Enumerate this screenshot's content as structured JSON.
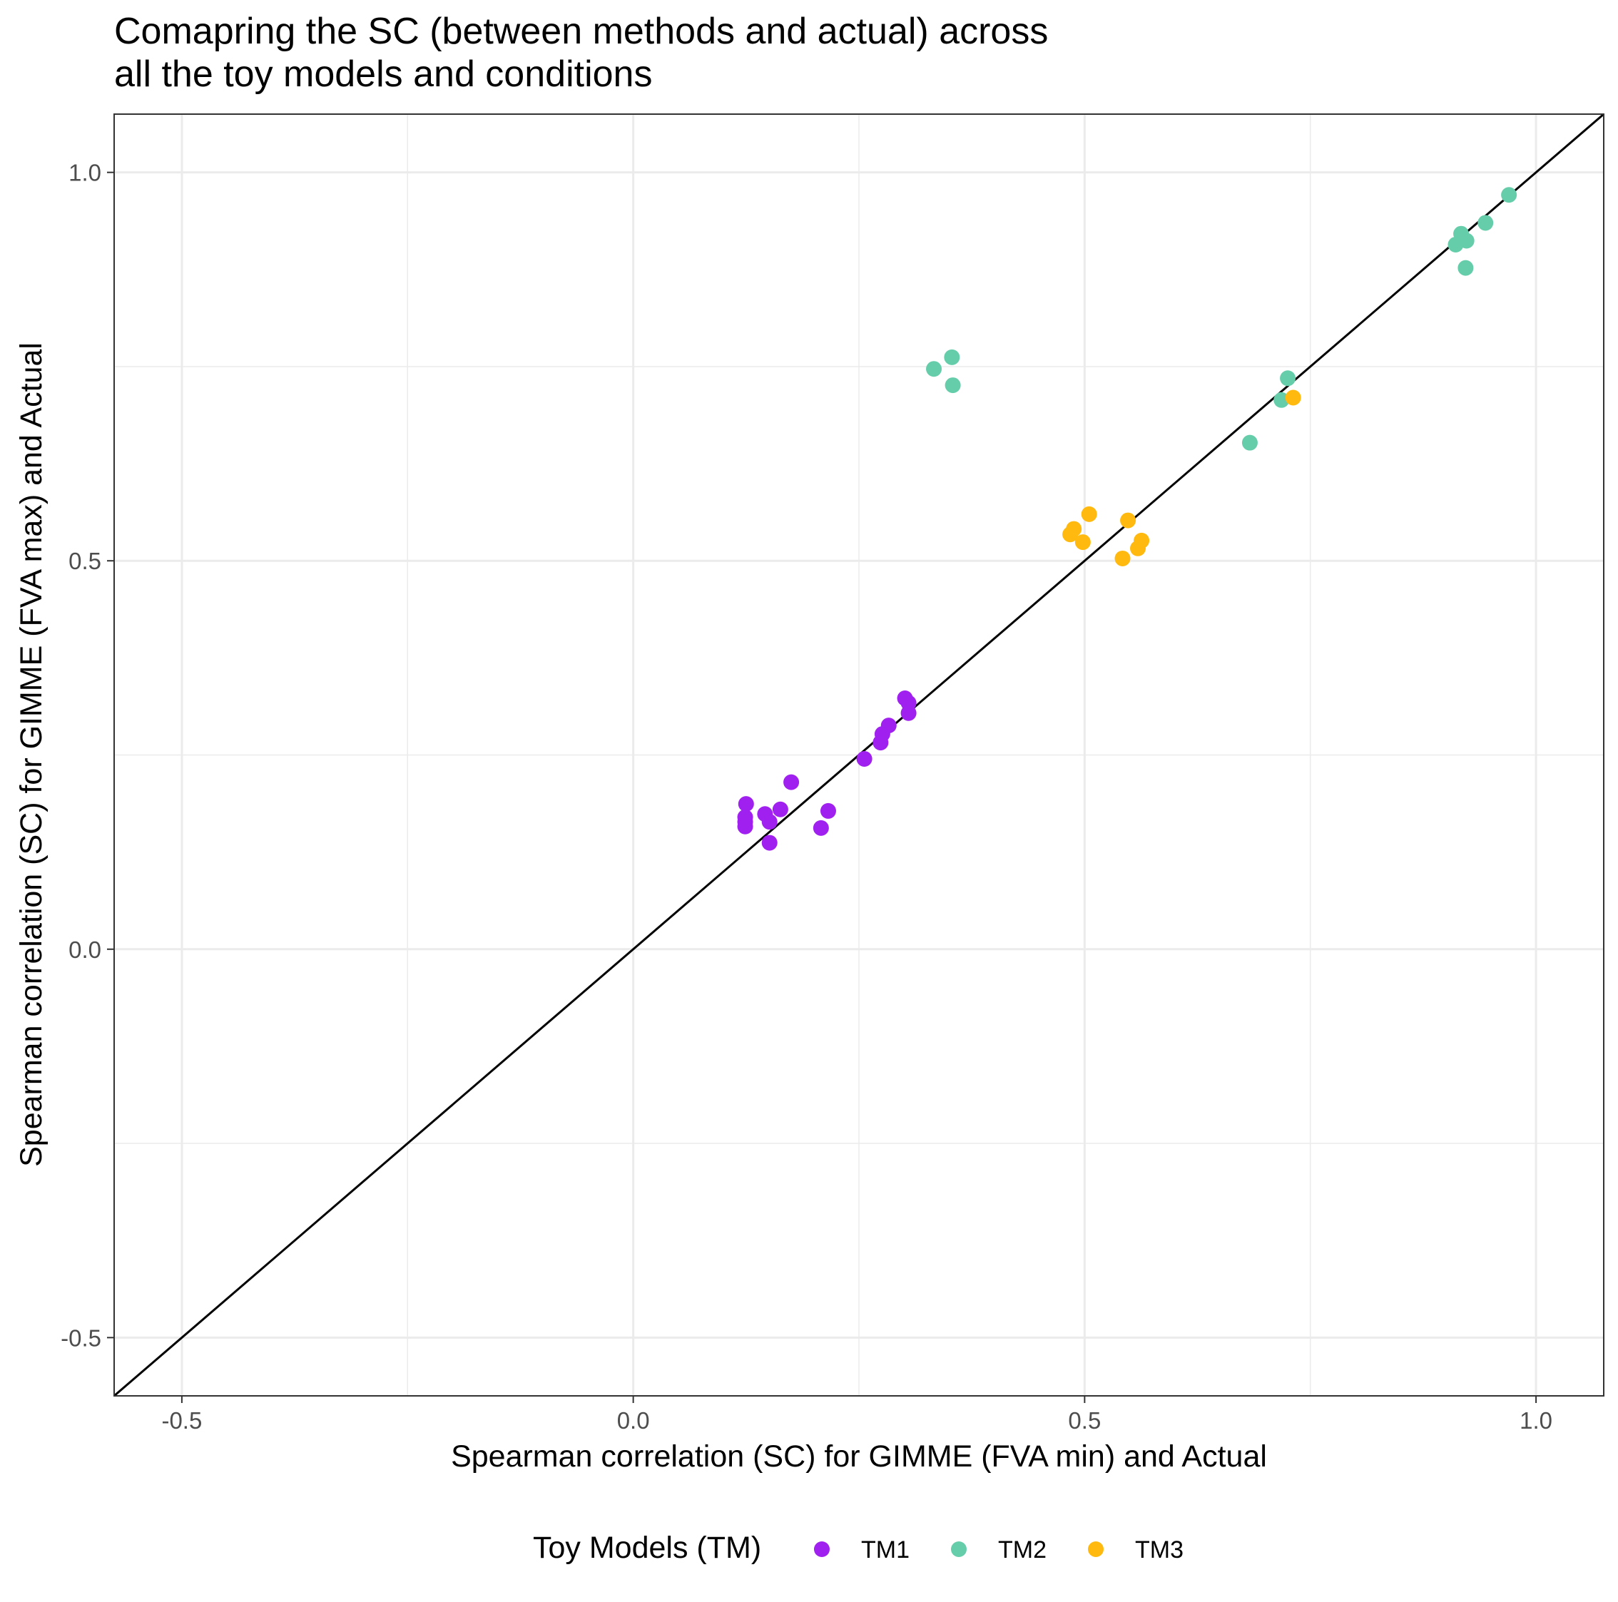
{
  "chart_data": {
    "type": "scatter",
    "title_lines": [
      "Comapring the SC (between methods and actual) across",
      "all the toy models and conditions"
    ],
    "xlabel": "Spearman correlation (SC) for GIMME (FVA min) and Actual",
    "ylabel": "Spearman correlation (SC) for GIMME (FVA max) and Actual",
    "xlim": [
      -0.575,
      1.075
    ],
    "ylim": [
      -0.575,
      1.075
    ],
    "x_ticks": [
      -0.5,
      0.0,
      0.5,
      1.0
    ],
    "x_tick_labels": [
      "-0.5",
      "0.0",
      "0.5",
      "1.0"
    ],
    "y_ticks": [
      -0.5,
      0.0,
      0.5,
      1.0
    ],
    "y_tick_labels": [
      "-0.5",
      "0.0",
      "0.5",
      "1.0"
    ],
    "grid": true,
    "reference_line": "y = x",
    "legend": {
      "title": "Toy Models (TM)",
      "position": "bottom"
    },
    "series": [
      {
        "name": "TM1",
        "color": "#a020f0",
        "points": [
          [
            0.125,
            0.187
          ],
          [
            0.124,
            0.17
          ],
          [
            0.124,
            0.164
          ],
          [
            0.124,
            0.158
          ],
          [
            0.146,
            0.174
          ],
          [
            0.151,
            0.164
          ],
          [
            0.151,
            0.137
          ],
          [
            0.163,
            0.18
          ],
          [
            0.175,
            0.215
          ],
          [
            0.208,
            0.156
          ],
          [
            0.216,
            0.178
          ],
          [
            0.256,
            0.245
          ],
          [
            0.274,
            0.266
          ],
          [
            0.276,
            0.277
          ],
          [
            0.283,
            0.288
          ],
          [
            0.301,
            0.323
          ],
          [
            0.305,
            0.317
          ],
          [
            0.305,
            0.304
          ]
        ]
      },
      {
        "name": "TM2",
        "color": "#66cdaa",
        "points": [
          [
            0.333,
            0.747
          ],
          [
            0.353,
            0.762
          ],
          [
            0.354,
            0.726
          ],
          [
            0.683,
            0.652
          ],
          [
            0.718,
            0.707
          ],
          [
            0.725,
            0.735
          ],
          [
            0.911,
            0.907
          ],
          [
            0.917,
            0.921
          ],
          [
            0.923,
            0.912
          ],
          [
            0.922,
            0.877
          ],
          [
            0.944,
            0.935
          ],
          [
            0.97,
            0.971
          ]
        ]
      },
      {
        "name": "TM3",
        "color": "#ffb90f",
        "points": [
          [
            0.484,
            0.534
          ],
          [
            0.488,
            0.541
          ],
          [
            0.498,
            0.524
          ],
          [
            0.505,
            0.56
          ],
          [
            0.542,
            0.503
          ],
          [
            0.548,
            0.552
          ],
          [
            0.559,
            0.516
          ],
          [
            0.563,
            0.526
          ],
          [
            0.731,
            0.71
          ]
        ]
      }
    ]
  }
}
